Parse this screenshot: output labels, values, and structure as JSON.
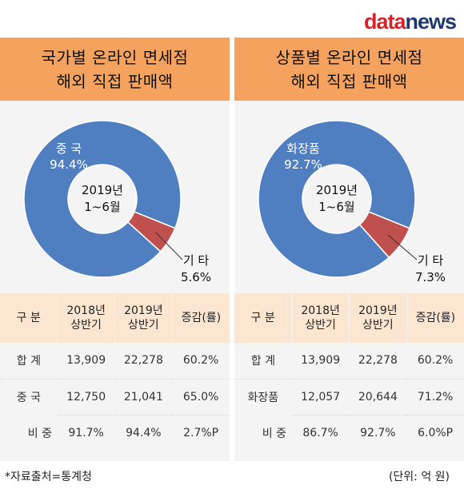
{
  "logo": {
    "part1": "data",
    "part2": "news"
  },
  "colors": {
    "header": "#f4a25e",
    "donut_main": "#4f7fc0",
    "donut_other": "#c0504d",
    "table_header": "#fce6d1",
    "panel_bg": "#f4f4f4"
  },
  "chart_data": [
    {
      "type": "pie",
      "title_lines": [
        "국가별 온라인 면세점",
        "해외 직접 판매액"
      ],
      "center_label": [
        "2019년",
        "1~6월"
      ],
      "slices": [
        {
          "label": "중 국",
          "value": 94.4,
          "value_label": "94.4%"
        },
        {
          "label": "기 타",
          "value": 5.6,
          "value_label": "5.6%"
        }
      ],
      "table": {
        "headers": [
          "구 분",
          "2018년\n상반기",
          "2019년\n상반기",
          "증감(률)"
        ],
        "rows": [
          [
            "합 계",
            "13,909",
            "22,278",
            "60.2%"
          ],
          [
            "중 국",
            "12,750",
            "21,041",
            "65.0%"
          ],
          [
            "비 중",
            "91.7%",
            "94.4%",
            "2.7%P"
          ]
        ]
      }
    },
    {
      "type": "pie",
      "title_lines": [
        "상품별 온라인 면세점",
        "해외 직접 판매액"
      ],
      "center_label": [
        "2019년",
        "1~6월"
      ],
      "slices": [
        {
          "label": "화장품",
          "value": 92.7,
          "value_label": "92.7%"
        },
        {
          "label": "기 타",
          "value": 7.3,
          "value_label": "7.3%"
        }
      ],
      "table": {
        "headers": [
          "구 분",
          "2018년\n상반기",
          "2019년\n상반기",
          "증감(률)"
        ],
        "rows": [
          [
            "합 계",
            "13,909",
            "22,278",
            "60.2%"
          ],
          [
            "화장품",
            "12,057",
            "20,644",
            "71.2%"
          ],
          [
            "비 중",
            "86.7%",
            "92.7%",
            "6.0%P"
          ]
        ]
      }
    }
  ],
  "footer": {
    "source": "*자료출처=통계청",
    "unit": "(단위: 억 원)"
  }
}
